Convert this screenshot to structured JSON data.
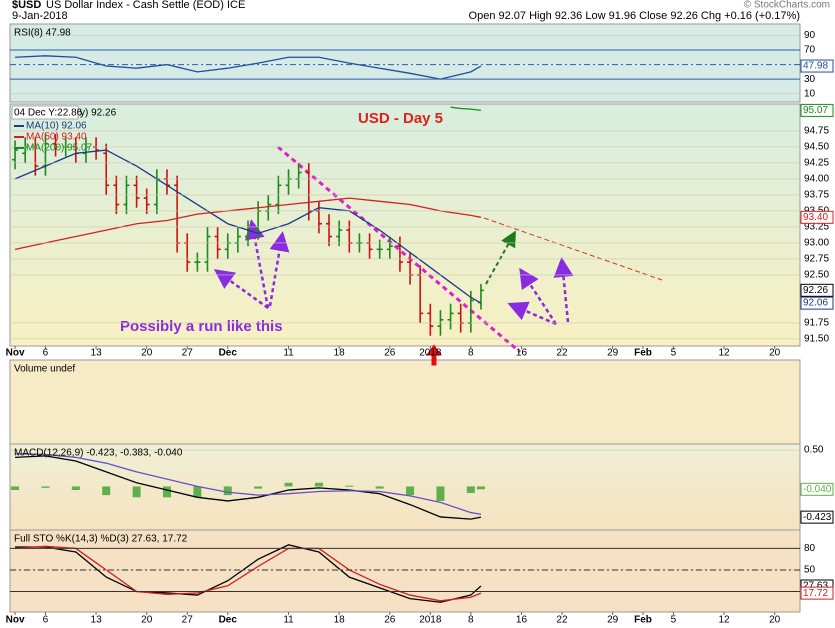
{
  "header": {
    "symbol": "$USD",
    "name": "US Dollar Index - Cash Settle (EOD) ICE",
    "date": "9-Jan-2018",
    "quote": "Open 92.07 High 92.36 Low 91.96 Close 92.26 Chg +0.16 (+0.17%)",
    "credit": "© StockCharts.com"
  },
  "annotations": [
    "USD - Day 5",
    "Possibly a run like this"
  ],
  "chart_data": [
    {
      "type": "line",
      "title": "RSI(8) 47.98",
      "x": [
        0,
        3,
        6,
        9,
        12,
        15,
        18,
        21,
        24,
        27,
        30,
        33,
        36,
        39,
        42,
        45,
        46
      ],
      "xlim": [
        -0.5,
        77.5
      ],
      "ylim": [
        -1.4,
        105.7
      ],
      "yticks": [
        10,
        30,
        70,
        90
      ],
      "reference_lines": [
        30,
        50,
        70
      ],
      "series": [
        {
          "color": "#1f4ea0",
          "values": [
            60,
            62,
            60,
            48,
            45,
            50,
            40,
            45,
            52,
            60,
            60,
            52,
            45,
            38,
            30,
            40,
            47.98
          ],
          "last_label": "47.98"
        }
      ]
    },
    {
      "type": "ohlc",
      "title": "y) 92.26",
      "tooltip": "04 Dec Y:22.86",
      "up_color": "#1a8a1a",
      "down_color": "#cc1111",
      "x": [
        0,
        1,
        2,
        3,
        4,
        5,
        6,
        7,
        8,
        9,
        10,
        11,
        12,
        13,
        14,
        15,
        16,
        17,
        18,
        19,
        20,
        21,
        22,
        23,
        24,
        25,
        26,
        27,
        28,
        29,
        30,
        31,
        32,
        33,
        34,
        35,
        36,
        37,
        38,
        39,
        40,
        41,
        42,
        43,
        44,
        45,
        46
      ],
      "open": [
        94.3,
        94.4,
        94.5,
        94.2,
        94.55,
        94.5,
        94.5,
        94.4,
        94.5,
        94.4,
        93.9,
        93.6,
        93.9,
        93.7,
        93.6,
        94.0,
        93.9,
        93.0,
        92.7,
        92.7,
        93.1,
        92.9,
        93.0,
        93.1,
        93.2,
        93.5,
        93.6,
        93.9,
        94.0,
        94.1,
        93.5,
        93.3,
        93.1,
        93.2,
        93.0,
        93.0,
        92.9,
        92.9,
        92.95,
        92.7,
        92.5,
        91.9,
        91.7,
        91.8,
        91.9,
        91.75,
        92.07
      ],
      "high": [
        94.6,
        94.65,
        94.65,
        94.7,
        94.7,
        94.65,
        94.65,
        94.65,
        94.65,
        94.55,
        94.05,
        94.05,
        94.05,
        93.85,
        94.15,
        94.15,
        94.05,
        93.15,
        92.85,
        93.25,
        93.25,
        93.15,
        93.25,
        93.35,
        93.65,
        93.75,
        94.05,
        94.15,
        94.25,
        94.25,
        93.65,
        93.45,
        93.35,
        93.35,
        93.15,
        93.15,
        93.05,
        93.1,
        93.1,
        92.85,
        92.65,
        92.05,
        91.95,
        92.05,
        92.05,
        92.25,
        92.36
      ],
      "low": [
        94.15,
        94.25,
        94.05,
        94.05,
        94.35,
        94.35,
        94.25,
        94.25,
        94.3,
        93.75,
        93.45,
        93.45,
        93.55,
        93.45,
        93.45,
        93.75,
        92.85,
        92.55,
        92.55,
        92.55,
        92.75,
        92.75,
        92.85,
        92.95,
        93.05,
        93.35,
        93.45,
        93.75,
        93.85,
        93.35,
        93.15,
        92.95,
        92.95,
        92.85,
        92.85,
        92.75,
        92.75,
        92.75,
        92.55,
        92.35,
        91.75,
        91.55,
        91.55,
        91.65,
        91.6,
        91.6,
        91.96
      ],
      "close": [
        94.45,
        94.5,
        94.2,
        94.55,
        94.5,
        94.5,
        94.4,
        94.5,
        94.45,
        93.9,
        93.6,
        93.9,
        93.7,
        93.6,
        94.0,
        93.9,
        93.0,
        92.7,
        92.7,
        93.1,
        92.9,
        93.0,
        93.1,
        93.2,
        93.5,
        93.6,
        93.9,
        94.0,
        94.1,
        93.5,
        93.3,
        93.1,
        93.2,
        93.0,
        93.0,
        92.9,
        92.9,
        92.95,
        92.7,
        92.5,
        91.9,
        91.7,
        91.8,
        91.9,
        91.75,
        92.1,
        92.26
      ],
      "last_label": "92.26",
      "xlim": [
        -0.5,
        77.5
      ],
      "ylim": [
        91.39,
        95.17
      ],
      "yticks": [
        {
          "value": 91.5,
          "label": "91.50"
        },
        {
          "value": 91.75,
          "label": "91.75"
        },
        {
          "value": 92.5,
          "label": "92.50"
        },
        {
          "value": 92.75,
          "label": "92.75"
        },
        {
          "value": 93,
          "label": "93.00"
        },
        {
          "value": 93.25,
          "label": "93.25"
        },
        {
          "value": 93.5,
          "label": "93.50"
        },
        {
          "value": 93.75,
          "label": "93.75"
        },
        {
          "value": 94,
          "label": "94.00"
        },
        {
          "value": 94.25,
          "label": "94.25"
        },
        {
          "value": 94.5,
          "label": "94.50"
        },
        {
          "value": 94.75,
          "label": "94.75"
        }
      ],
      "xticks": [
        {
          "value": 0,
          "label": "Nov"
        },
        {
          "value": 3,
          "label": "6"
        },
        {
          "value": 8,
          "label": "13"
        },
        {
          "value": 13,
          "label": "20"
        },
        {
          "value": 17,
          "label": "27"
        },
        {
          "value": 21,
          "label": "Dec"
        },
        {
          "value": 27,
          "label": "11"
        },
        {
          "value": 32,
          "label": "18"
        },
        {
          "value": 37,
          "label": "26"
        },
        {
          "value": 41,
          "label": "2018"
        },
        {
          "value": 45,
          "label": "8"
        },
        {
          "value": 50,
          "label": "16"
        },
        {
          "value": 54,
          "label": "22"
        },
        {
          "value": 59,
          "label": "29"
        },
        {
          "value": 62,
          "label": "Feb"
        },
        {
          "value": 65,
          "label": "5"
        },
        {
          "value": 70,
          "label": "12"
        },
        {
          "value": 75,
          "label": "20"
        }
      ],
      "series": [
        {
          "name": "MA(10) 92.06",
          "color": "#1a3a8a",
          "x": [
            0,
            3,
            6,
            9,
            12,
            15,
            18,
            21,
            24,
            27,
            30,
            33,
            36,
            39,
            42,
            45,
            46
          ],
          "values": [
            94.0,
            94.2,
            94.4,
            94.45,
            94.2,
            93.9,
            93.6,
            93.3,
            93.15,
            93.3,
            93.55,
            93.5,
            93.2,
            92.85,
            92.5,
            92.15,
            92.06
          ],
          "last_label": "92.06"
        },
        {
          "name": "MA(50) 93.40",
          "color": "#d42020",
          "x": [
            0,
            3,
            6,
            9,
            12,
            15,
            18,
            21,
            24,
            27,
            30,
            33,
            36,
            39,
            42,
            45,
            46
          ],
          "values": [
            92.9,
            93.0,
            93.1,
            93.2,
            93.3,
            93.35,
            93.45,
            93.5,
            93.55,
            93.6,
            93.65,
            93.7,
            93.65,
            93.6,
            93.5,
            93.43,
            93.4
          ],
          "last_label": "93.40"
        },
        {
          "name": "MA(200) 95.07",
          "color": "#1a8a1a",
          "x": [
            43,
            44,
            45,
            46
          ],
          "values": [
            95.12,
            95.1,
            95.09,
            95.07
          ],
          "last_label": "95.07"
        }
      ]
    },
    {
      "type": "volume",
      "title": "Volume undef"
    },
    {
      "type": "macd",
      "title": "MACD(12,26,9) -0.423, -0.383, -0.040",
      "x": [
        0,
        3,
        6,
        9,
        12,
        15,
        18,
        21,
        24,
        27,
        30,
        33,
        36,
        39,
        42,
        45,
        46
      ],
      "xlim": [
        -0.5,
        77.5
      ],
      "ylim": [
        -0.6,
        0.584
      ],
      "yticks": [
        {
          "value": 0.5,
          "label": "0.50"
        }
      ],
      "series": [
        {
          "color": "#000000",
          "values": [
            0.4,
            0.42,
            0.35,
            0.2,
            0.05,
            -0.05,
            -0.15,
            -0.2,
            -0.15,
            -0.05,
            -0.02,
            -0.05,
            -0.1,
            -0.25,
            -0.42,
            -0.45,
            -0.423
          ],
          "last_label": "-0.423"
        },
        {
          "color": "#6a4fc8",
          "values": [
            0.45,
            0.44,
            0.4,
            0.32,
            0.2,
            0.1,
            0.0,
            -0.08,
            -0.12,
            -0.1,
            -0.07,
            -0.06,
            -0.07,
            -0.13,
            -0.22,
            -0.36,
            -0.383
          ]
        }
      ],
      "histogram": {
        "color": "#5fb04a",
        "values": [
          -0.05,
          -0.02,
          -0.05,
          -0.12,
          -0.15,
          -0.15,
          -0.15,
          -0.12,
          -0.03,
          0.05,
          0.05,
          0.01,
          -0.03,
          -0.12,
          -0.2,
          -0.09,
          -0.04
        ],
        "last_label": "-0.040"
      }
    },
    {
      "type": "line",
      "title": "Full STO %K(14,3) %D(3) 27.63, 17.72",
      "x": [
        0,
        3,
        6,
        9,
        12,
        15,
        18,
        21,
        24,
        27,
        30,
        33,
        36,
        39,
        42,
        45,
        46
      ],
      "xlim": [
        -0.5,
        77.5
      ],
      "ylim": [
        -8.6,
        105.7
      ],
      "yticks": [
        20,
        50,
        80
      ],
      "reference_lines": [
        20,
        50,
        80
      ],
      "xticks": [
        {
          "value": 0,
          "label": "Nov"
        },
        {
          "value": 3,
          "label": "6"
        },
        {
          "value": 8,
          "label": "13"
        },
        {
          "value": 13,
          "label": "20"
        },
        {
          "value": 17,
          "label": "27"
        },
        {
          "value": 21,
          "label": "Dec"
        },
        {
          "value": 27,
          "label": "11"
        },
        {
          "value": 32,
          "label": "18"
        },
        {
          "value": 37,
          "label": "26"
        },
        {
          "value": 41,
          "label": "2018"
        },
        {
          "value": 45,
          "label": "8"
        },
        {
          "value": 50,
          "label": "16"
        },
        {
          "value": 54,
          "label": "22"
        },
        {
          "value": 59,
          "label": "29"
        },
        {
          "value": 62,
          "label": "Feb"
        },
        {
          "value": 65,
          "label": "5"
        },
        {
          "value": 70,
          "label": "12"
        },
        {
          "value": 75,
          "label": "20"
        }
      ],
      "series": [
        {
          "color": "#000000",
          "values": [
            82,
            82,
            75,
            40,
            20,
            18,
            15,
            35,
            65,
            85,
            75,
            40,
            25,
            10,
            5,
            15,
            27.63
          ],
          "last_label": "27.63"
        },
        {
          "color": "#d02020",
          "values": [
            80,
            83,
            80,
            50,
            20,
            16,
            18,
            28,
            55,
            80,
            80,
            50,
            30,
            15,
            7,
            12,
            17.72
          ],
          "last_label": "17.72"
        }
      ]
    }
  ]
}
